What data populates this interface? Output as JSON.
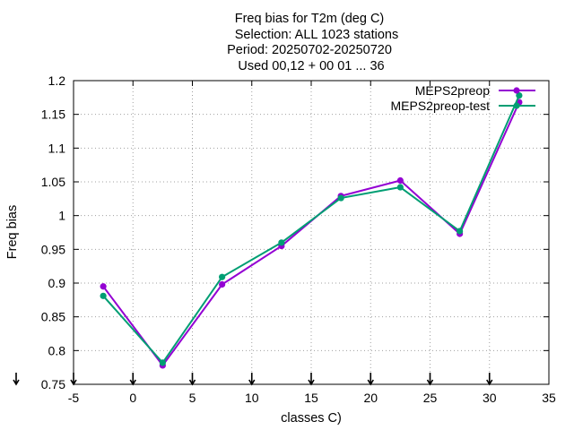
{
  "chart_data": {
    "type": "line",
    "title_lines": [
      "Freq bias  for T2m (deg C)",
      "Selection: ALL    1023 stations",
      "Period: 20250702-20250720",
      "Used 00,12 + 00 01 ... 36"
    ],
    "xlabel": "classes C)",
    "ylabel": "Freq bias",
    "xlim": [
      -5,
      35
    ],
    "ylim": [
      0.75,
      1.2
    ],
    "xticks": [
      "-5",
      "0",
      "5",
      "10",
      "15",
      "20",
      "25",
      "30",
      "35"
    ],
    "yticks": [
      "0.75",
      "0.8",
      "0.85",
      "0.9",
      "0.95",
      "1",
      "1.05",
      "1.1",
      "1.15",
      "1.2"
    ],
    "grid": true,
    "legend_position": "top-right",
    "class_markers_x": [
      -5,
      0,
      5,
      10,
      15,
      20,
      25,
      30
    ],
    "series": [
      {
        "name": "MEPS2preop",
        "color": "#9400d3",
        "x": [
          -2.5,
          2.5,
          7.5,
          12.5,
          17.5,
          22.5,
          27.5,
          32.5
        ],
        "values": [
          0.895,
          0.778,
          0.898,
          0.955,
          1.029,
          1.052,
          0.973,
          1.168
        ]
      },
      {
        "name": "MEPS2preop-test",
        "color": "#009e73",
        "x": [
          -2.5,
          2.5,
          7.5,
          12.5,
          17.5,
          22.5,
          27.5,
          32.5
        ],
        "values": [
          0.881,
          0.782,
          0.909,
          0.96,
          1.026,
          1.042,
          0.977,
          1.178
        ]
      }
    ]
  }
}
